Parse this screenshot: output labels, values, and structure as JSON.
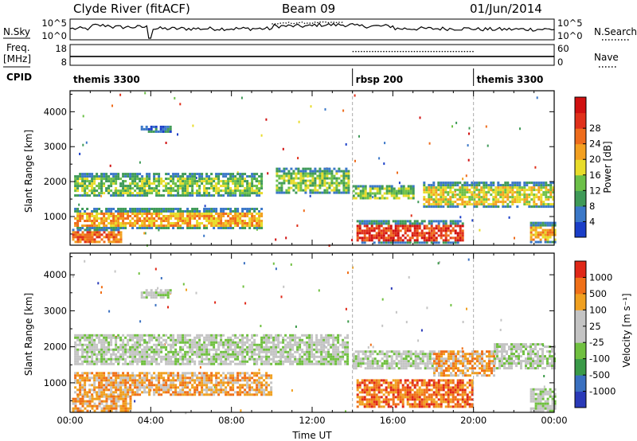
{
  "header": {
    "station": "Clyde River (fitACF)",
    "beam": "Beam 09",
    "date": "01/Jun/2014"
  },
  "labels": {
    "n_sky": "N.Sky",
    "freq_top": "Freq.",
    "freq_unit": "[MHz]",
    "cpid": "CPID",
    "n_search": "N.Search",
    "nave": "Nave",
    "power_label": "Power [dB]",
    "velocity_label": "Velocity [m s⁻¹]",
    "slant_range": "Slant Range [km]",
    "xlabel": "Time UT"
  },
  "colors": {
    "power": [
      "#1a3ec8",
      "#3b78c8",
      "#3f9a58",
      "#6cc048",
      "#e8dc2a",
      "#f3a020",
      "#ee6c1c",
      "#e0301a",
      "#d01010"
    ],
    "velocity": [
      "#2a3ab8",
      "#3a70c0",
      "#3a9a48",
      "#70c040",
      "#c4c4c4",
      "#c4c4c4",
      "#f0a020",
      "#f07018",
      "#e02818"
    ]
  },
  "chart_data": [
    {
      "type": "line",
      "name": "N.Sky / N.Search strip",
      "x_range": [
        0,
        24
      ],
      "y_ticks": [
        "10^5",
        "10^0"
      ],
      "right_ticks": [
        "10^5",
        "10^0"
      ],
      "legend": "N.Search",
      "series": [
        {
          "name": "N.Sky",
          "style": "solid",
          "x": [
            0,
            1,
            2,
            3,
            3.8,
            4,
            6,
            8,
            10,
            12,
            14,
            16,
            18,
            20,
            22,
            24
          ],
          "y": [
            3,
            4,
            3.5,
            3.5,
            0,
            3,
            3,
            3,
            3.8,
            4.2,
            3.8,
            3,
            3,
            2.8,
            2.8,
            3
          ]
        },
        {
          "name": "N.Search",
          "style": "dotted",
          "x": [
            10,
            10.5,
            12,
            13.5
          ],
          "y": [
            4.5,
            4.8,
            4.9,
            4.6
          ]
        }
      ]
    },
    {
      "type": "line",
      "name": "Freq / Nave strip",
      "x_range": [
        0,
        24
      ],
      "left_ticks": [
        "18",
        "8"
      ],
      "right_ticks": [
        "60",
        "0"
      ],
      "legend": "Nave",
      "series": [
        {
          "name": "Freq.",
          "style": "solid",
          "x": [
            0,
            3.75,
            3.85,
            24
          ],
          "y": [
            12,
            12,
            12,
            12
          ]
        },
        {
          "name": "Nave",
          "style": "dotted",
          "x": [
            14,
            20
          ],
          "y": [
            40,
            40
          ]
        }
      ],
      "cpid_segments": [
        {
          "label": "themis 3300",
          "start": 0,
          "end": 14
        },
        {
          "label": "rbsp 200",
          "start": 14,
          "end": 20
        },
        {
          "label": "themis 3300",
          "start": 20,
          "end": 24
        }
      ]
    },
    {
      "type": "heatmap",
      "name": "Power",
      "xlabel": "",
      "ylabel": "Slant Range [km]",
      "x_range": [
        0,
        24
      ],
      "y_range": [
        180,
        4600
      ],
      "y_ticks": [
        1000,
        2000,
        3000,
        4000
      ],
      "colorbar_label": "Power [dB]",
      "colorbar_ticks": [
        4,
        8,
        12,
        16,
        20,
        24,
        28
      ],
      "colorbar_range": [
        0,
        32
      ],
      "mode_boundaries": [
        14,
        20
      ],
      "bands": [
        {
          "t0": 0.2,
          "t1": 9.5,
          "r0": 1600,
          "r1": 2250,
          "level": 3
        },
        {
          "t0": 0.2,
          "t1": 9.5,
          "r0": 650,
          "r1": 1250,
          "level": 5
        },
        {
          "t0": 0.1,
          "t1": 2.5,
          "r0": 250,
          "r1": 650,
          "level": 6
        },
        {
          "t0": 10.2,
          "t1": 13.8,
          "r0": 1700,
          "r1": 2400,
          "level": 3
        },
        {
          "t0": 14,
          "t1": 17,
          "r0": 1500,
          "r1": 1900,
          "level": 3
        },
        {
          "t0": 14.2,
          "t1": 19.5,
          "r0": 250,
          "r1": 900,
          "level": 7
        },
        {
          "t0": 17.5,
          "t1": 24,
          "r0": 1300,
          "r1": 2000,
          "level": 4
        },
        {
          "t0": 3.5,
          "t1": 5,
          "r0": 3400,
          "r1": 3600,
          "level": 1
        },
        {
          "t0": 22.8,
          "t1": 24,
          "r0": 250,
          "r1": 850,
          "level": 5
        }
      ]
    },
    {
      "type": "heatmap",
      "name": "Velocity",
      "xlabel": "Time UT",
      "ylabel": "Slant Range [km]",
      "x_range": [
        0,
        24
      ],
      "x_ticks": [
        "00:00",
        "04:00",
        "08:00",
        "12:00",
        "16:00",
        "20:00",
        "00:00"
      ],
      "y_range": [
        180,
        4600
      ],
      "y_ticks": [
        1000,
        2000,
        3000,
        4000
      ],
      "colorbar_label": "Velocity [m s⁻¹]",
      "colorbar_ticks": [
        "1000",
        "500",
        "100",
        "25",
        "-25",
        "-100",
        "-500",
        "-1000"
      ],
      "mode_boundaries": [
        14,
        20
      ],
      "bands": [
        {
          "t0": 0.2,
          "t1": 13.8,
          "r0": 1550,
          "r1": 2350,
          "level": 4
        },
        {
          "t0": 0.2,
          "t1": 10,
          "r0": 650,
          "r1": 1300,
          "level": 6
        },
        {
          "t0": 0.1,
          "t1": 3,
          "r0": 250,
          "r1": 650,
          "level": 6
        },
        {
          "t0": 14.2,
          "t1": 20,
          "r0": 350,
          "r1": 1100,
          "level": 7
        },
        {
          "t0": 14,
          "t1": 18,
          "r0": 1400,
          "r1": 1900,
          "level": 4
        },
        {
          "t0": 18,
          "t1": 21,
          "r0": 1200,
          "r1": 1900,
          "level": 6
        },
        {
          "t0": 21,
          "t1": 24,
          "r0": 1400,
          "r1": 2100,
          "level": 4
        },
        {
          "t0": 22.8,
          "t1": 24,
          "r0": 250,
          "r1": 850,
          "level": 4
        },
        {
          "t0": 3.5,
          "t1": 5,
          "r0": 3400,
          "r1": 3600,
          "level": 4
        }
      ]
    }
  ]
}
